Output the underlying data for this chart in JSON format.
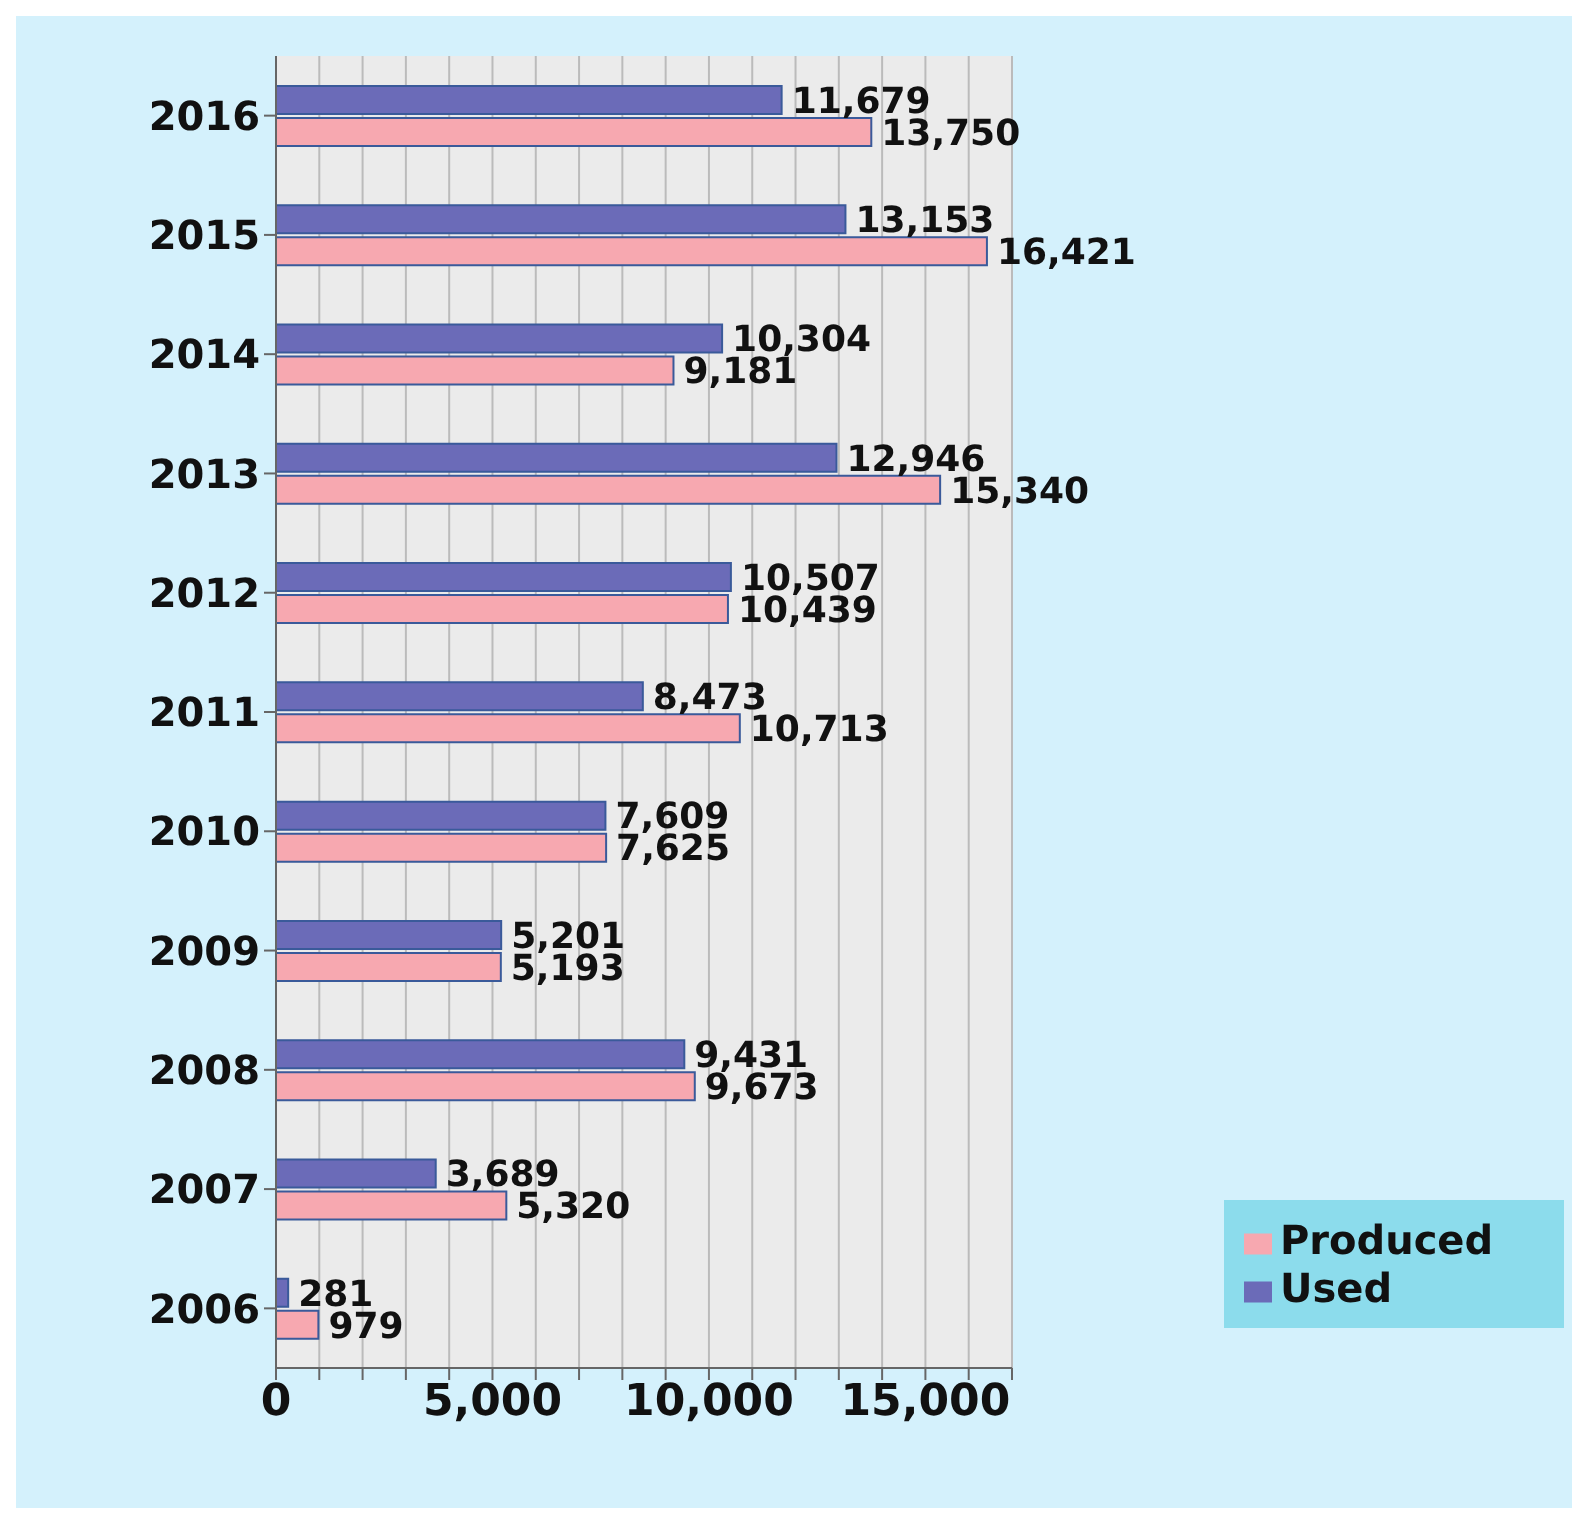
{
  "chart_data": {
    "type": "bar",
    "orientation": "horizontal",
    "categories": [
      "2016",
      "2015",
      "2014",
      "2013",
      "2012",
      "2011",
      "2010",
      "2009",
      "2008",
      "2007",
      "2006"
    ],
    "series": [
      {
        "name": "Used",
        "color": "#6b6bb8",
        "values": [
          11679,
          13153,
          10304,
          12946,
          10507,
          8473,
          7609,
          5201,
          9431,
          3689,
          281
        ],
        "value_labels": [
          "11,679",
          "13,153",
          "10,304",
          "12,946",
          "10,507",
          "8,473",
          "7,609",
          "5,201",
          "9,431",
          "3,689",
          "281"
        ]
      },
      {
        "name": "Produced",
        "color": "#f7a8b0",
        "values": [
          13750,
          16421,
          9181,
          15340,
          10439,
          10713,
          7625,
          5193,
          9673,
          5320,
          979
        ],
        "value_labels": [
          "13,750",
          "16,421",
          "9,181",
          "15,340",
          "10,439",
          "10,713",
          "7,625",
          "5,193",
          "9,673",
          "5,320",
          "979"
        ]
      }
    ],
    "xlim": [
      0,
      17000
    ],
    "xticks": [
      0,
      {
        "value": 1000,
        "label": null
      },
      {
        "value": 2000,
        "label": null
      },
      {
        "value": 3000,
        "label": null
      },
      {
        "value": 4000,
        "label": null
      },
      {
        "value": 5000,
        "label": "5,000"
      },
      {
        "value": 6000,
        "label": null
      },
      {
        "value": 7000,
        "label": null
      },
      {
        "value": 8000,
        "label": null
      },
      {
        "value": 9000,
        "label": null
      },
      {
        "value": 10000,
        "label": "10,000"
      },
      {
        "value": 11000,
        "label": null
      },
      {
        "value": 12000,
        "label": null
      },
      {
        "value": 13000,
        "label": null
      },
      {
        "value": 14000,
        "label": null
      },
      {
        "value": 15000,
        "label": "15,000"
      },
      {
        "value": 16000,
        "label": null
      },
      {
        "value": 17000,
        "label": null
      }
    ],
    "grid": "x",
    "legend": "bottom right"
  }
}
